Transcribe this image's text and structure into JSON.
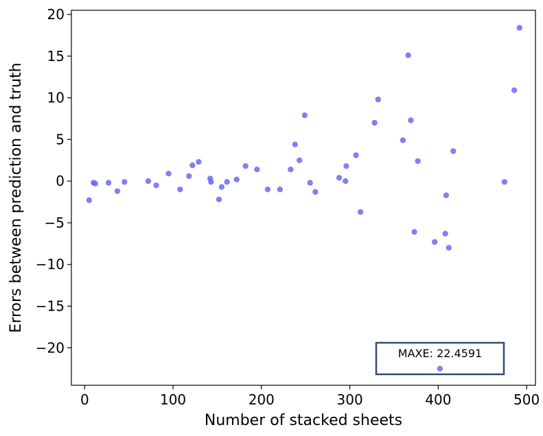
{
  "chart_data": {
    "type": "scatter",
    "xlabel": "Number of stacked sheets",
    "ylabel": "Errors between prediction and truth",
    "xlim": [
      -15,
      510
    ],
    "ylim": [
      -24.5,
      20.5
    ],
    "xticks": [
      0,
      100,
      200,
      300,
      400,
      500
    ],
    "xtick_labels": [
      "0",
      "100",
      "200",
      "300",
      "400",
      "500"
    ],
    "yticks": [
      -20,
      -15,
      -10,
      -5,
      0,
      5,
      10,
      15,
      20
    ],
    "ytick_labels": [
      "−20",
      "−15",
      "−10",
      "−5",
      "0",
      "5",
      "10",
      "15",
      "20"
    ],
    "grid": false,
    "marker_color": "#6b6bf0",
    "annotation": {
      "text": "MAXE: 22.4591",
      "border_color": "#2e4a7a",
      "point": [
        402,
        -22.5
      ]
    },
    "points": [
      [
        5,
        -2.3
      ],
      [
        10,
        -0.2
      ],
      [
        12,
        -0.3
      ],
      [
        27,
        -0.2
      ],
      [
        37,
        -1.2
      ],
      [
        45,
        -0.1
      ],
      [
        72,
        0.0
      ],
      [
        81,
        -0.5
      ],
      [
        95,
        0.9
      ],
      [
        108,
        -1.0
      ],
      [
        118,
        0.6
      ],
      [
        122,
        1.9
      ],
      [
        129,
        2.3
      ],
      [
        142,
        0.3
      ],
      [
        143,
        -0.1
      ],
      [
        152,
        -2.2
      ],
      [
        155,
        -0.7
      ],
      [
        161,
        -0.1
      ],
      [
        172,
        0.2
      ],
      [
        182,
        1.8
      ],
      [
        195,
        1.4
      ],
      [
        207,
        -1.0
      ],
      [
        221,
        -1.0
      ],
      [
        233,
        1.4
      ],
      [
        238,
        4.4
      ],
      [
        243,
        2.5
      ],
      [
        249,
        7.9
      ],
      [
        255,
        -0.2
      ],
      [
        261,
        -1.3
      ],
      [
        288,
        0.4
      ],
      [
        295,
        0.0
      ],
      [
        296,
        1.8
      ],
      [
        307,
        3.1
      ],
      [
        312,
        -3.7
      ],
      [
        328,
        7.0
      ],
      [
        332,
        9.8
      ],
      [
        360,
        4.9
      ],
      [
        366,
        15.1
      ],
      [
        369,
        7.3
      ],
      [
        373,
        -6.1
      ],
      [
        377,
        2.4
      ],
      [
        396,
        -7.3
      ],
      [
        402,
        -22.5
      ],
      [
        408,
        -6.3
      ],
      [
        409,
        -1.7
      ],
      [
        412,
        -8.0
      ],
      [
        417,
        3.6
      ],
      [
        475,
        -0.1
      ],
      [
        486,
        10.9
      ],
      [
        492,
        18.4
      ]
    ]
  }
}
